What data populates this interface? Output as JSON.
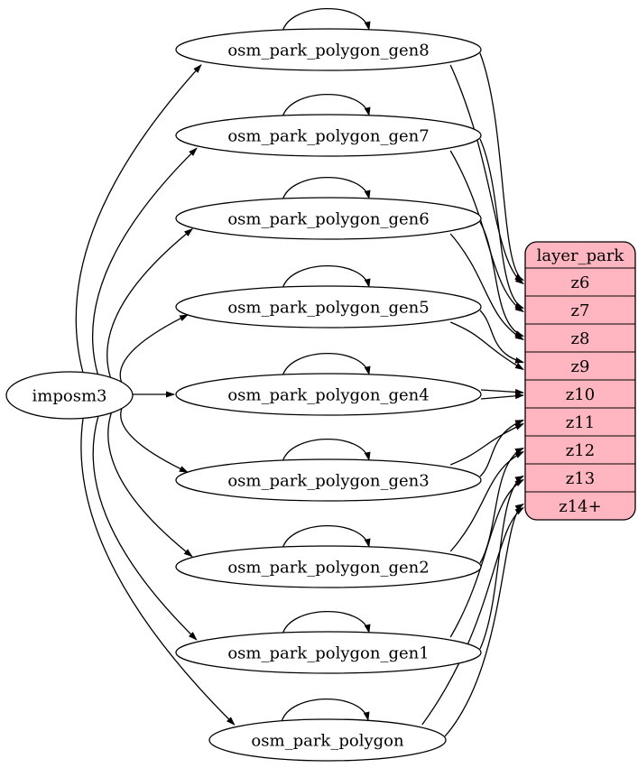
{
  "diagram": {
    "colors": {
      "background": "#ffffff",
      "node_fill": "#ffffff",
      "node_stroke": "#000000",
      "edge": "#000000",
      "record_fill": "#ffb6c1",
      "text": "#000000"
    },
    "source": {
      "id": "imposm3",
      "label": "imposm3"
    },
    "tables": [
      {
        "id": "osm_park_polygon_gen8",
        "label": "osm_park_polygon_gen8"
      },
      {
        "id": "osm_park_polygon_gen7",
        "label": "osm_park_polygon_gen7"
      },
      {
        "id": "osm_park_polygon_gen6",
        "label": "osm_park_polygon_gen6"
      },
      {
        "id": "osm_park_polygon_gen5",
        "label": "osm_park_polygon_gen5"
      },
      {
        "id": "osm_park_polygon_gen4",
        "label": "osm_park_polygon_gen4"
      },
      {
        "id": "osm_park_polygon_gen3",
        "label": "osm_park_polygon_gen3"
      },
      {
        "id": "osm_park_polygon_gen2",
        "label": "osm_park_polygon_gen2"
      },
      {
        "id": "osm_park_polygon_gen1",
        "label": "osm_park_polygon_gen1"
      },
      {
        "id": "osm_park_polygon",
        "label": "osm_park_polygon"
      }
    ],
    "record": {
      "id": "layer_park",
      "title": "layer_park",
      "rows": [
        "z6",
        "z7",
        "z8",
        "z9",
        "z10",
        "z11",
        "z12",
        "z13",
        "z14+"
      ]
    },
    "edges": {
      "source_to_tables": [
        "osm_park_polygon_gen8",
        "osm_park_polygon_gen7",
        "osm_park_polygon_gen6",
        "osm_park_polygon_gen5",
        "osm_park_polygon_gen4",
        "osm_park_polygon_gen3",
        "osm_park_polygon_gen2",
        "osm_park_polygon_gen1",
        "osm_park_polygon"
      ],
      "self_loops": [
        "osm_park_polygon_gen8",
        "osm_park_polygon_gen7",
        "osm_park_polygon_gen6",
        "osm_park_polygon_gen5",
        "osm_park_polygon_gen4",
        "osm_park_polygon_gen3",
        "osm_park_polygon_gen2",
        "osm_park_polygon_gen1",
        "osm_park_polygon"
      ],
      "table_to_record": [
        {
          "from": "osm_park_polygon_gen8",
          "port": "z6"
        },
        {
          "from": "osm_park_polygon_gen7",
          "port": "z7"
        },
        {
          "from": "osm_park_polygon_gen6",
          "port": "z8"
        },
        {
          "from": "osm_park_polygon_gen5",
          "port": "z9"
        },
        {
          "from": "osm_park_polygon_gen4",
          "port": "z10"
        },
        {
          "from": "osm_park_polygon_gen3",
          "port": "z11"
        },
        {
          "from": "osm_park_polygon_gen2",
          "port": "z12"
        },
        {
          "from": "osm_park_polygon_gen1",
          "port": "z13"
        },
        {
          "from": "osm_park_polygon",
          "port": "z14+"
        }
      ],
      "edges_per_mapping": 2
    }
  }
}
